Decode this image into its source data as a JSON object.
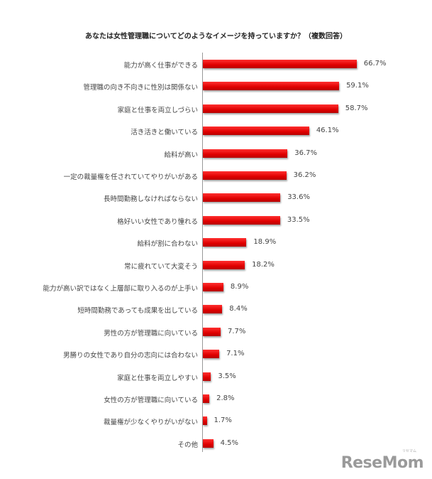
{
  "title": "あなたは女性管理職についてどのようなイメージを持っていますか？（複数回答）",
  "logo": {
    "text": "ReseMom",
    "sub": "リセマム"
  },
  "colors": {
    "bar": "#e00000",
    "axis": "#999999"
  },
  "chart_data": {
    "type": "bar",
    "orientation": "horizontal",
    "title": "あなたは女性管理職についてどのようなイメージを持っていますか？（複数回答）",
    "xlabel": "",
    "ylabel": "",
    "unit": "%",
    "grid": false,
    "legend": null,
    "categories": [
      "能力が高く仕事ができる",
      "管理職の向き不向きに性別は関係ない",
      "家庭と仕事を両立しづらい",
      "活き活きと働いている",
      "給料が高い",
      "一定の裁量権を任されていてやりがいがある",
      "長時間勤務しなければならない",
      "格好いい女性であり憧れる",
      "給料が割に合わない",
      "常に疲れていて大変そう",
      "能力が高い訳ではなく上層部に取り入るのが上手い",
      "短時間勤務であっても成果を出している",
      "男性の方が管理職に向いている",
      "男勝りの女性であり自分の志向には合わない",
      "家庭と仕事を両立しやすい",
      "女性の方が管理職に向いている",
      "裁量権が少なくやりがいがない",
      "その他"
    ],
    "values": [
      66.7,
      59.1,
      58.7,
      46.1,
      36.7,
      36.2,
      33.6,
      33.5,
      18.9,
      18.2,
      8.9,
      8.4,
      7.7,
      7.1,
      3.5,
      2.8,
      1.7,
      4.5
    ],
    "value_labels": [
      "66.7%",
      "59.1%",
      "58.7%",
      "46.1%",
      "36.7%",
      "36.2%",
      "33.6%",
      "33.5%",
      "18.9%",
      "18.2%",
      "8.9%",
      "8.4%",
      "7.7%",
      "7.1%",
      "3.5%",
      "2.8%",
      "1.7%",
      "4.5%"
    ]
  }
}
